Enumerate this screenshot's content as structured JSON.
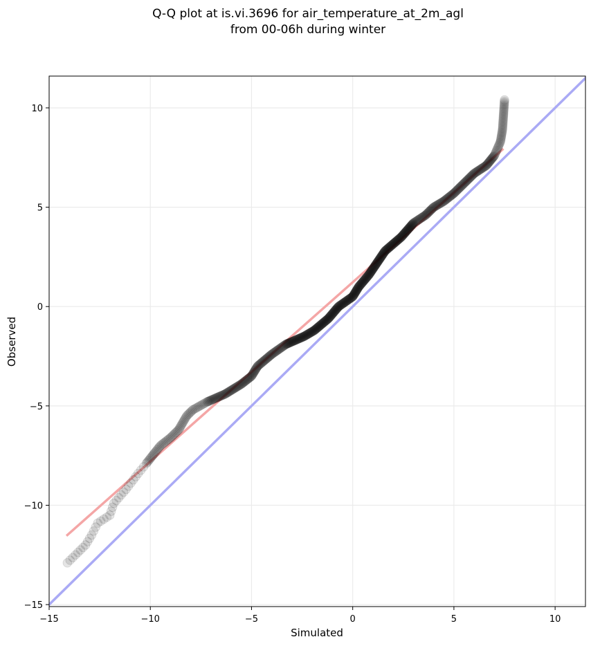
{
  "chart_data": {
    "type": "scatter",
    "title": "Q-Q plot at is.vi.3696 for air_temperature_at_2m_agl",
    "subtitle": "from 00-06h during winter",
    "xlabel": "Simulated",
    "ylabel": "Observed",
    "xlim": [
      -15,
      11.5
    ],
    "ylim": [
      -15.1,
      11.6
    ],
    "xticks": [
      -15,
      -10,
      -5,
      0,
      5,
      10
    ],
    "yticks": [
      -15,
      -10,
      -5,
      0,
      5,
      10
    ],
    "xtick_labels": [
      "−15",
      "−10",
      "−5",
      "0",
      "5",
      "10"
    ],
    "ytick_labels": [
      "−15",
      "−10",
      "−5",
      "0",
      "5",
      "10"
    ],
    "grid": true,
    "colors": {
      "points": "#000000",
      "fit_line": "#f4a6a6",
      "identity_line": "#aaaaf5",
      "grid": "#ebebeb"
    },
    "reference_lines": [
      {
        "kind": "identity",
        "x": [
          -15,
          11.5
        ],
        "y": [
          -15,
          11.5
        ]
      },
      {
        "kind": "fit",
        "x": [
          -14.1,
          7.4
        ],
        "y": [
          -11.5,
          7.9
        ]
      }
    ],
    "anchors": [
      [
        -14.1,
        -12.9
      ],
      [
        -13.7,
        -12.5
      ],
      [
        -13.2,
        -12.0
      ],
      [
        -12.9,
        -11.5
      ],
      [
        -12.6,
        -10.9
      ],
      [
        -12.0,
        -10.5
      ],
      [
        -11.8,
        -9.9
      ],
      [
        -11.2,
        -9.2
      ],
      [
        -10.6,
        -8.4
      ],
      [
        -10.2,
        -7.9
      ],
      [
        -9.5,
        -7.0
      ],
      [
        -9.0,
        -6.6
      ],
      [
        -8.6,
        -6.2
      ],
      [
        -8.2,
        -5.5
      ],
      [
        -7.9,
        -5.2
      ],
      [
        -7.2,
        -4.8
      ],
      [
        -6.3,
        -4.4
      ],
      [
        -5.5,
        -3.9
      ],
      [
        -5.0,
        -3.5
      ],
      [
        -4.7,
        -3.0
      ],
      [
        -4.0,
        -2.4
      ],
      [
        -3.3,
        -1.9
      ],
      [
        -2.4,
        -1.5
      ],
      [
        -1.9,
        -1.2
      ],
      [
        -1.2,
        -0.6
      ],
      [
        -0.7,
        0.0
      ],
      [
        0.0,
        0.5
      ],
      [
        0.3,
        1.0
      ],
      [
        0.8,
        1.6
      ],
      [
        1.2,
        2.2
      ],
      [
        1.6,
        2.8
      ],
      [
        2.4,
        3.5
      ],
      [
        3.0,
        4.2
      ],
      [
        3.6,
        4.6
      ],
      [
        4.0,
        5.0
      ],
      [
        4.5,
        5.3
      ],
      [
        5.0,
        5.7
      ],
      [
        5.6,
        6.3
      ],
      [
        6.0,
        6.7
      ],
      [
        6.6,
        7.1
      ],
      [
        7.0,
        7.6
      ],
      [
        7.3,
        8.3
      ],
      [
        7.4,
        8.9
      ],
      [
        7.5,
        10.4
      ]
    ],
    "n_points": 700
  }
}
